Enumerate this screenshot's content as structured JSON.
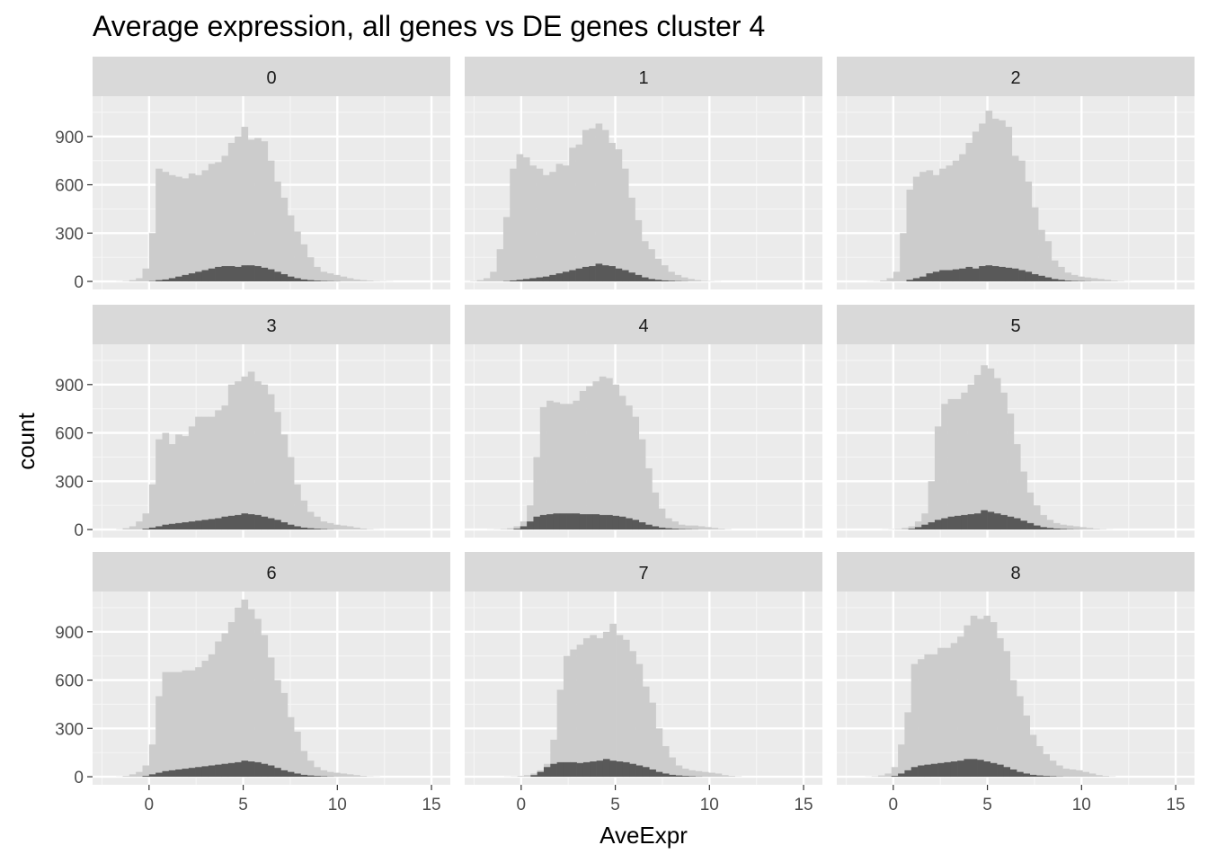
{
  "chart_data": {
    "type": "histogram",
    "title": "Average expression, all genes vs DE genes cluster 4",
    "xlabel": "AveExpr",
    "ylabel": "count",
    "xlim": [
      -3,
      16
    ],
    "ylim": [
      -50,
      1150
    ],
    "x_ticks": [
      0,
      5,
      10,
      15
    ],
    "x_tick_labels": [
      "0",
      "5",
      "10",
      "15"
    ],
    "y_ticks": [
      0,
      300,
      600,
      900
    ],
    "y_tick_labels": [
      "0",
      "300",
      "600",
      "900"
    ],
    "bin_width": 0.35,
    "bin_start": -2.1,
    "grid": true,
    "facet_layout": {
      "rows": 3,
      "cols": 3
    },
    "series": [
      {
        "name": "all genes",
        "color": "#cccccc"
      },
      {
        "name": "DE genes cluster 4",
        "color": "#595959"
      }
    ],
    "panels": [
      {
        "label": "0",
        "all": [
          0,
          1,
          3,
          8,
          20,
          80,
          300,
          700,
          680,
          660,
          650,
          640,
          670,
          660,
          690,
          730,
          740,
          780,
          860,
          900,
          960,
          880,
          890,
          870,
          750,
          620,
          520,
          410,
          310,
          230,
          150,
          90,
          60,
          50,
          40,
          30,
          20,
          12,
          8,
          5,
          3,
          2,
          1,
          0,
          0,
          0,
          0,
          0,
          0
        ],
        "de": [
          0,
          0,
          0,
          0,
          0,
          0,
          2,
          8,
          12,
          20,
          30,
          40,
          50,
          60,
          70,
          80,
          90,
          95,
          95,
          90,
          100,
          100,
          95,
          85,
          75,
          60,
          45,
          30,
          20,
          12,
          8,
          5,
          3,
          2,
          1,
          0,
          0,
          0,
          0,
          0,
          0,
          0,
          0,
          0,
          0,
          0,
          0,
          0,
          0
        ]
      },
      {
        "label": "1",
        "all": [
          1,
          3,
          8,
          20,
          60,
          200,
          400,
          700,
          790,
          770,
          720,
          700,
          660,
          680,
          730,
          720,
          830,
          850,
          940,
          950,
          980,
          940,
          860,
          820,
          700,
          520,
          380,
          250,
          200,
          140,
          100,
          60,
          40,
          25,
          15,
          8,
          4,
          2,
          1,
          0,
          0,
          0,
          0,
          0,
          0,
          0,
          0,
          0,
          0
        ],
        "de": [
          0,
          0,
          0,
          0,
          0,
          0,
          2,
          6,
          10,
          15,
          20,
          25,
          30,
          40,
          50,
          60,
          70,
          80,
          90,
          95,
          110,
          100,
          95,
          80,
          70,
          55,
          40,
          25,
          15,
          10,
          6,
          4,
          2,
          1,
          0,
          0,
          0,
          0,
          0,
          0,
          0,
          0,
          0,
          0,
          0,
          0,
          0,
          0,
          0
        ],
        "start": -3.05
      },
      {
        "label": "2",
        "all": [
          0,
          0,
          1,
          2,
          6,
          20,
          60,
          300,
          570,
          650,
          680,
          690,
          660,
          700,
          720,
          750,
          790,
          860,
          930,
          980,
          1060,
          1010,
          1000,
          960,
          780,
          750,
          620,
          460,
          320,
          250,
          130,
          90,
          55,
          40,
          30,
          25,
          20,
          15,
          10,
          5,
          3,
          1,
          0,
          0,
          0,
          0,
          0,
          0,
          0
        ],
        "de": [
          0,
          0,
          0,
          0,
          0,
          0,
          0,
          0,
          10,
          20,
          30,
          50,
          60,
          70,
          70,
          75,
          80,
          90,
          80,
          95,
          100,
          95,
          90,
          85,
          80,
          70,
          60,
          45,
          35,
          25,
          15,
          10,
          5,
          3,
          2,
          1,
          0,
          0,
          0,
          0,
          0,
          0,
          0,
          0,
          0,
          0,
          0,
          0,
          0
        ]
      },
      {
        "label": "3",
        "all": [
          0,
          2,
          8,
          20,
          50,
          100,
          280,
          560,
          600,
          530,
          590,
          580,
          640,
          700,
          700,
          700,
          740,
          770,
          900,
          920,
          950,
          980,
          920,
          900,
          840,
          730,
          590,
          450,
          280,
          180,
          110,
          80,
          50,
          40,
          30,
          25,
          20,
          12,
          6,
          3,
          1,
          0,
          0,
          0,
          0,
          0,
          0,
          0,
          0
        ],
        "de": [
          0,
          0,
          0,
          0,
          0,
          5,
          12,
          20,
          30,
          35,
          40,
          45,
          50,
          55,
          60,
          65,
          70,
          80,
          85,
          90,
          100,
          95,
          90,
          80,
          70,
          60,
          45,
          30,
          20,
          12,
          8,
          5,
          3,
          1,
          0,
          0,
          0,
          0,
          0,
          0,
          0,
          0,
          0,
          0,
          0,
          0,
          0,
          0,
          0
        ]
      },
      {
        "label": "4",
        "all": [
          0,
          0,
          1,
          2,
          4,
          8,
          20,
          50,
          150,
          450,
          760,
          800,
          790,
          780,
          780,
          800,
          860,
          890,
          920,
          950,
          940,
          900,
          830,
          770,
          700,
          560,
          380,
          230,
          130,
          70,
          50,
          30,
          25,
          25,
          20,
          15,
          10,
          5,
          2,
          0,
          0,
          0,
          0,
          0,
          0,
          0,
          0,
          0,
          0
        ],
        "de": [
          0,
          0,
          0,
          0,
          0,
          0,
          5,
          20,
          50,
          80,
          90,
          95,
          100,
          100,
          100,
          100,
          95,
          95,
          95,
          90,
          90,
          85,
          80,
          70,
          60,
          45,
          30,
          20,
          12,
          8,
          5,
          3,
          2,
          1,
          0,
          0,
          0,
          0,
          0,
          0,
          0,
          0,
          0,
          0,
          0,
          0,
          0,
          0,
          0
        ],
        "start": -2.5
      },
      {
        "label": "5",
        "all": [
          0,
          0,
          1,
          2,
          4,
          10,
          20,
          50,
          100,
          300,
          640,
          780,
          810,
          810,
          850,
          900,
          960,
          1020,
          1000,
          940,
          850,
          720,
          530,
          360,
          230,
          150,
          90,
          60,
          40,
          30,
          25,
          20,
          15,
          10,
          5,
          3,
          1,
          0,
          0,
          0,
          0,
          0,
          0,
          0,
          0,
          0,
          0,
          0,
          0
        ],
        "de": [
          0,
          0,
          0,
          0,
          0,
          0,
          5,
          15,
          30,
          45,
          60,
          70,
          80,
          85,
          90,
          95,
          100,
          120,
          110,
          100,
          90,
          80,
          70,
          55,
          40,
          25,
          15,
          10,
          6,
          4,
          2,
          1,
          0,
          0,
          0,
          0,
          0,
          0,
          0,
          0,
          0,
          0,
          0,
          0,
          0,
          0,
          0,
          0,
          0
        ],
        "start": -1.3
      },
      {
        "label": "6",
        "all": [
          0,
          1,
          5,
          15,
          30,
          70,
          200,
          500,
          650,
          650,
          650,
          660,
          660,
          680,
          720,
          760,
          840,
          890,
          960,
          1050,
          1100,
          1040,
          980,
          880,
          740,
          600,
          520,
          370,
          280,
          160,
          100,
          60,
          40,
          30,
          25,
          20,
          15,
          10,
          5,
          2,
          1,
          0,
          0,
          0,
          0,
          0,
          0,
          0,
          0
        ],
        "de": [
          0,
          0,
          0,
          0,
          0,
          5,
          15,
          25,
          35,
          40,
          45,
          50,
          55,
          60,
          65,
          70,
          75,
          80,
          85,
          90,
          100,
          95,
          90,
          80,
          70,
          55,
          40,
          30,
          20,
          12,
          8,
          5,
          3,
          1,
          0,
          0,
          0,
          0,
          0,
          0,
          0,
          0,
          0,
          0,
          0,
          0,
          0,
          0,
          0
        ]
      },
      {
        "label": "7",
        "all": [
          0,
          0,
          1,
          2,
          5,
          10,
          20,
          40,
          80,
          230,
          540,
          750,
          790,
          820,
          860,
          880,
          860,
          900,
          950,
          880,
          850,
          780,
          700,
          560,
          460,
          300,
          190,
          120,
          70,
          50,
          40,
          35,
          30,
          25,
          20,
          10,
          5,
          2,
          0,
          0,
          0,
          0,
          0,
          0,
          0,
          0,
          0,
          0,
          0
        ],
        "de": [
          0,
          0,
          0,
          0,
          0,
          0,
          10,
          30,
          60,
          80,
          90,
          90,
          90,
          85,
          90,
          95,
          100,
          110,
          100,
          95,
          90,
          80,
          70,
          60,
          45,
          30,
          20,
          12,
          8,
          5,
          3,
          1,
          0,
          0,
          0,
          0,
          0,
          0,
          0,
          0,
          0,
          0,
          0,
          0,
          0,
          0,
          0,
          0,
          0
        ],
        "start": -1.6
      },
      {
        "label": "8",
        "all": [
          0,
          0,
          1,
          3,
          8,
          20,
          60,
          200,
          400,
          700,
          730,
          760,
          760,
          800,
          800,
          830,
          870,
          940,
          1000,
          980,
          1000,
          960,
          860,
          780,
          600,
          500,
          380,
          260,
          190,
          140,
          100,
          70,
          50,
          45,
          40,
          30,
          20,
          10,
          5,
          2,
          0,
          0,
          0,
          0,
          0,
          0,
          0,
          0,
          0
        ],
        "de": [
          0,
          0,
          0,
          0,
          0,
          0,
          5,
          20,
          40,
          60,
          70,
          75,
          80,
          85,
          90,
          95,
          100,
          110,
          110,
          105,
          95,
          85,
          75,
          60,
          45,
          30,
          20,
          12,
          8,
          5,
          3,
          1,
          0,
          0,
          0,
          0,
          0,
          0,
          0,
          0,
          0,
          0,
          0,
          0,
          0,
          0,
          0,
          0,
          0
        ],
        "start": -2.2
      }
    ]
  }
}
